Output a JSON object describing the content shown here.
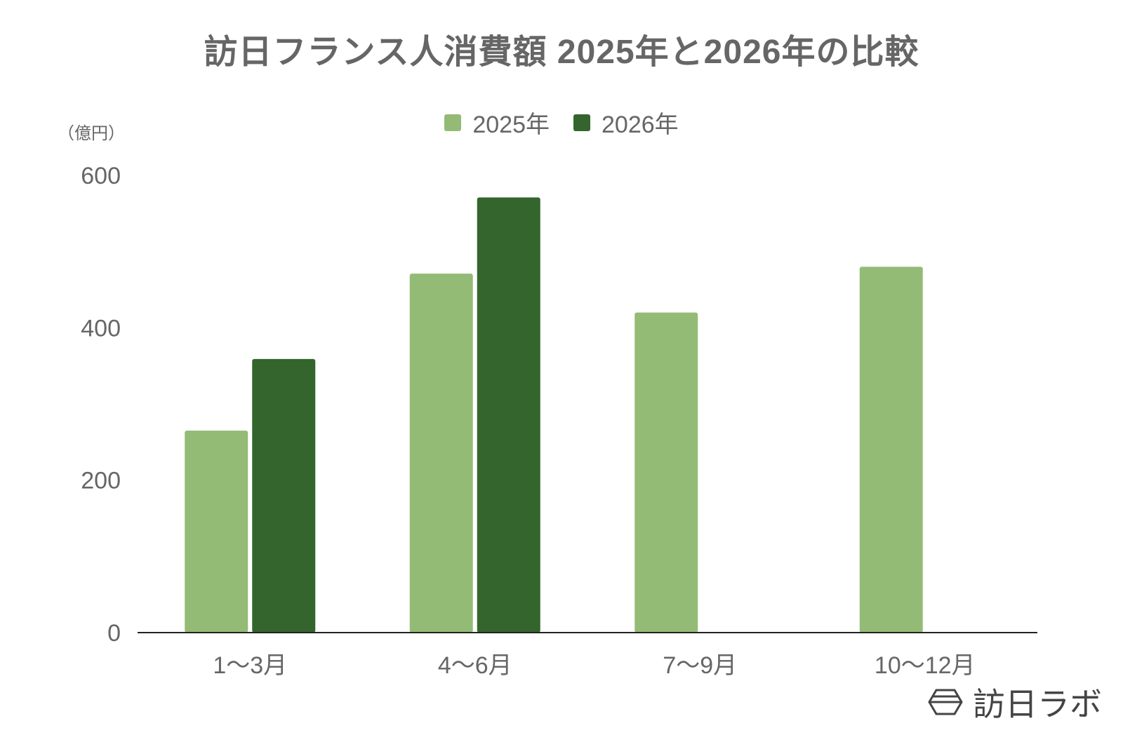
{
  "title": "訪日フランス人消費額 2025年と2026年の比較",
  "unit_label": "（億円）",
  "brand": {
    "name": "訪日ラボ",
    "icon": "hexagon-logo-icon"
  },
  "colors": {
    "series_2025": "#93bb75",
    "series_2026": "#33652c",
    "axis": "#222222",
    "text": "#666666"
  },
  "chart_data": {
    "type": "bar",
    "title": "訪日フランス人消費額 2025年と2026年の比較",
    "ylabel": "（億円）",
    "xlabel": "",
    "categories": [
      "1〜3月",
      "4〜6月",
      "7〜9月",
      "10〜12月"
    ],
    "series": [
      {
        "name": "2025年",
        "values": [
          265,
          471,
          420,
          480
        ]
      },
      {
        "name": "2026年",
        "values": [
          359,
          571,
          null,
          null
        ]
      }
    ],
    "ylim": [
      0,
      600
    ],
    "yticks": [
      0,
      200,
      400,
      600
    ],
    "grid": false,
    "legend": "top-center"
  }
}
